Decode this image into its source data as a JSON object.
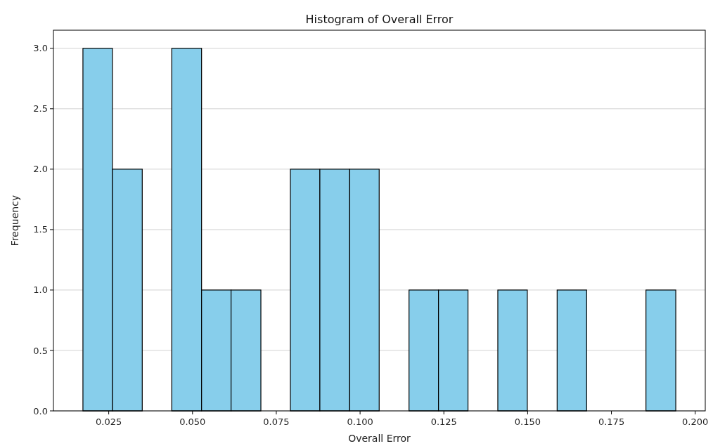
{
  "chart_data": {
    "type": "histogram",
    "title": "Histogram of Overall Error",
    "xlabel": "Overall Error",
    "ylabel": "Frequency",
    "bins": [
      0.0173,
      0.0261,
      0.035,
      0.0438,
      0.0527,
      0.0615,
      0.0704,
      0.0792,
      0.088,
      0.0969,
      0.1057,
      0.1146,
      0.1234,
      0.1322,
      0.1411,
      0.1499,
      0.1588,
      0.1676,
      0.1765,
      0.1853,
      0.1942
    ],
    "values": [
      3,
      2,
      0,
      3,
      1,
      1,
      0,
      2,
      2,
      2,
      0,
      1,
      1,
      0,
      1,
      0,
      1,
      0,
      0,
      1
    ],
    "color": "#87ceeb",
    "xlim": [
      0.0085,
      0.203
    ],
    "xticks": [
      {
        "value": 0.025,
        "label": "0.025"
      },
      {
        "value": 0.05,
        "label": "0.050"
      },
      {
        "value": 0.075,
        "label": "0.075"
      },
      {
        "value": 0.1,
        "label": "0.100"
      },
      {
        "value": 0.125,
        "label": "0.125"
      },
      {
        "value": 0.15,
        "label": "0.150"
      },
      {
        "value": 0.175,
        "label": "0.175"
      },
      {
        "value": 0.2,
        "label": "0.200"
      }
    ],
    "ylim": [
      0,
      3.15
    ],
    "yticks": [
      {
        "value": 0,
        "label": "0.0"
      },
      {
        "value": 0.5,
        "label": "0.5"
      },
      {
        "value": 1,
        "label": "1.0"
      },
      {
        "value": 1.5,
        "label": "1.5"
      },
      {
        "value": 2,
        "label": "2.0"
      },
      {
        "value": 2.5,
        "label": "2.5"
      },
      {
        "value": 3,
        "label": "3.0"
      }
    ],
    "grid": "y"
  }
}
